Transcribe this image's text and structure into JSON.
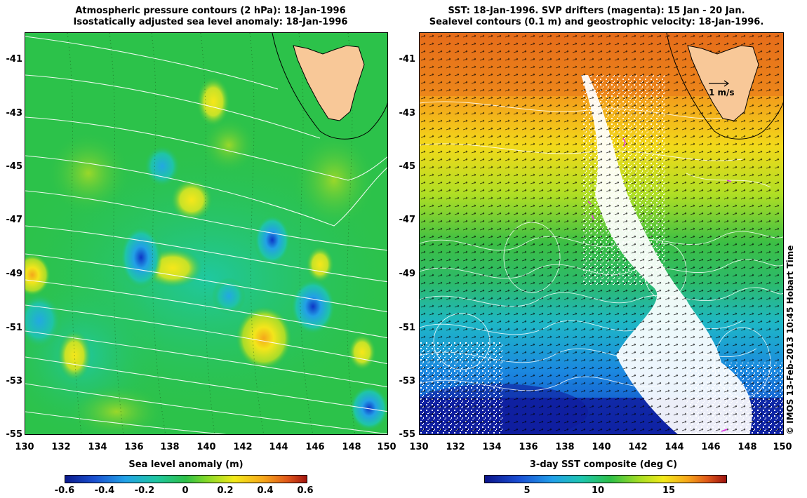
{
  "left": {
    "title_line1": "Atmospheric pressure contours (2 hPa): 18-Jan-1996",
    "title_line2": "Isostatically adjusted sea level anomaly: 18-Jan-1996",
    "colorbar_label": "Sea level anomaly (m)",
    "colorbar_ticks": [
      "-0.6",
      "-0.4",
      "-0.2",
      "0",
      "0.2",
      "0.4",
      "0.6"
    ]
  },
  "right": {
    "title_line1": "SST: 18-Jan-1996. SVP drifters (magenta): 15 Jan - 20 Jan.",
    "title_line2": "Sealevel contours (0.1 m) and geostrophic velocity: 18-Jan-1996.",
    "colorbar_label": "3-day SST composite (deg C)",
    "colorbar_ticks": [
      "5",
      "10",
      "15"
    ],
    "scale_arrow_label": "1 m/s"
  },
  "axes": {
    "y_ticks": [
      "-41",
      "-43",
      "-45",
      "-47",
      "-49",
      "-51",
      "-53",
      "-55"
    ],
    "x_ticks": [
      "130",
      "132",
      "134",
      "136",
      "138",
      "140",
      "142",
      "144",
      "146",
      "148",
      "150"
    ],
    "lat_range": [
      -55,
      -40
    ],
    "lon_range": [
      130,
      150
    ]
  },
  "credit": "© IMOS 13-Feb-2013 10:45 Hobart Time",
  "colors": {
    "land": "#f8c898",
    "ocean_left": "#2cc24a",
    "contour": "#ffffff",
    "drifter": "#e030e0"
  }
}
